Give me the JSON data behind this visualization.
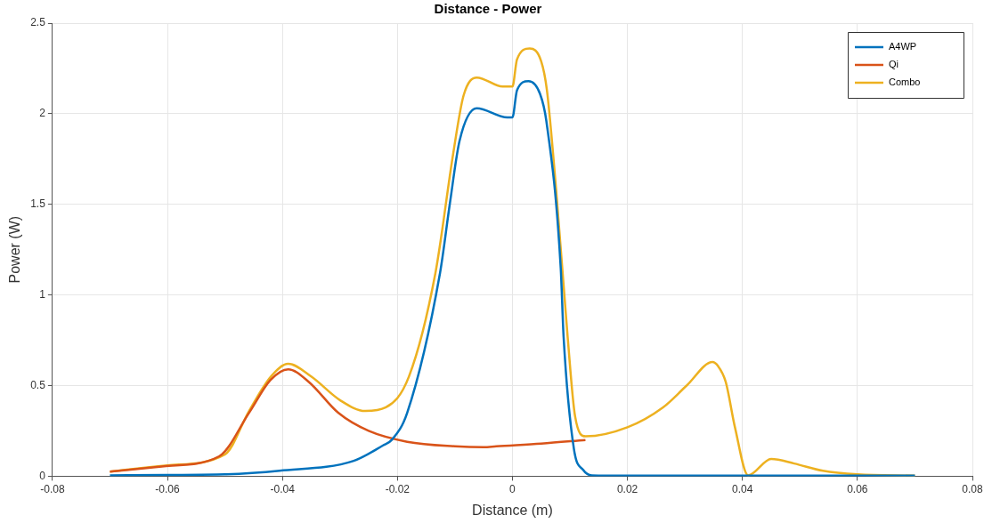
{
  "chart_data": {
    "type": "line",
    "title": "Distance - Power",
    "xlabel": "Distance (m)",
    "ylabel": "Power (W)",
    "xlim": [
      -0.08,
      0.08
    ],
    "xticks": [
      -0.08,
      -0.06,
      -0.04,
      -0.02,
      0,
      0.02,
      0.04,
      0.06,
      0.08
    ],
    "ylim": [
      0,
      2.5
    ],
    "yticks": [
      0,
      0.5,
      1,
      1.5,
      2,
      2.5
    ],
    "grid": true,
    "legend": "top right",
    "marker": "none",
    "line_style": "solid",
    "series": [
      {
        "name": "A4WP",
        "color": "#0072bd",
        "x": [
          -0.07,
          -0.06,
          -0.05,
          -0.0405,
          -0.0276,
          -0.0225,
          -0.021,
          -0.0183,
          -0.0126,
          -0.0109,
          -0.0092,
          -0.0062,
          -0.0009,
          0,
          0.0008,
          0.0028,
          0.0048,
          0.0059,
          0.0084,
          0.0089,
          0.0107,
          0.0123,
          0.0138,
          0.02,
          0.04,
          0.06,
          0.07
        ],
        "values": [
          0.005,
          0.007,
          0.01,
          0.03,
          0.085,
          0.17,
          0.2,
          0.35,
          1.12,
          1.5,
          1.85,
          2.03,
          1.98,
          1.98,
          2.13,
          2.18,
          2.11,
          1.96,
          1.15,
          0.77,
          0.15,
          0.035,
          0.005,
          0.003,
          0.003,
          0.003,
          0.003
        ]
      },
      {
        "name": "Qi",
        "color": "#d95319",
        "x": [
          -0.07,
          -0.0606,
          -0.051,
          -0.0458,
          -0.0421,
          -0.039,
          -0.0354,
          -0.0303,
          -0.025,
          -0.0183,
          -0.01,
          -0.005,
          -0.0028,
          0.005,
          0.0127
        ],
        "values": [
          0.025,
          0.055,
          0.11,
          0.35,
          0.53,
          0.59,
          0.52,
          0.35,
          0.25,
          0.19,
          0.165,
          0.16,
          0.165,
          0.18,
          0.2
        ]
      },
      {
        "name": "Combo",
        "color": "#edb120",
        "x": [
          -0.07,
          -0.06,
          -0.05,
          -0.0458,
          -0.042,
          -0.039,
          -0.035,
          -0.03,
          -0.0256,
          -0.022,
          -0.018,
          -0.0134,
          -0.0103,
          -0.0085,
          -0.0062,
          -0.0017,
          0,
          0.0008,
          0.003,
          0.005,
          0.006,
          0.0076,
          0.0096,
          0.0109,
          0.0127,
          0.02,
          0.0262,
          0.0303,
          0.0348,
          0.0357,
          0.0371,
          0.0387,
          0.041,
          0.045,
          0.049,
          0.054,
          0.06,
          0.07
        ],
        "values": [
          0.025,
          0.06,
          0.12,
          0.36,
          0.55,
          0.62,
          0.55,
          0.42,
          0.36,
          0.38,
          0.55,
          1.12,
          1.78,
          2.1,
          2.2,
          2.15,
          2.15,
          2.3,
          2.36,
          2.29,
          2.13,
          1.58,
          0.77,
          0.33,
          0.22,
          0.27,
          0.38,
          0.5,
          0.63,
          0.61,
          0.52,
          0.27,
          0.005,
          0.095,
          0.07,
          0.03,
          0.01,
          0.003
        ]
      }
    ]
  }
}
